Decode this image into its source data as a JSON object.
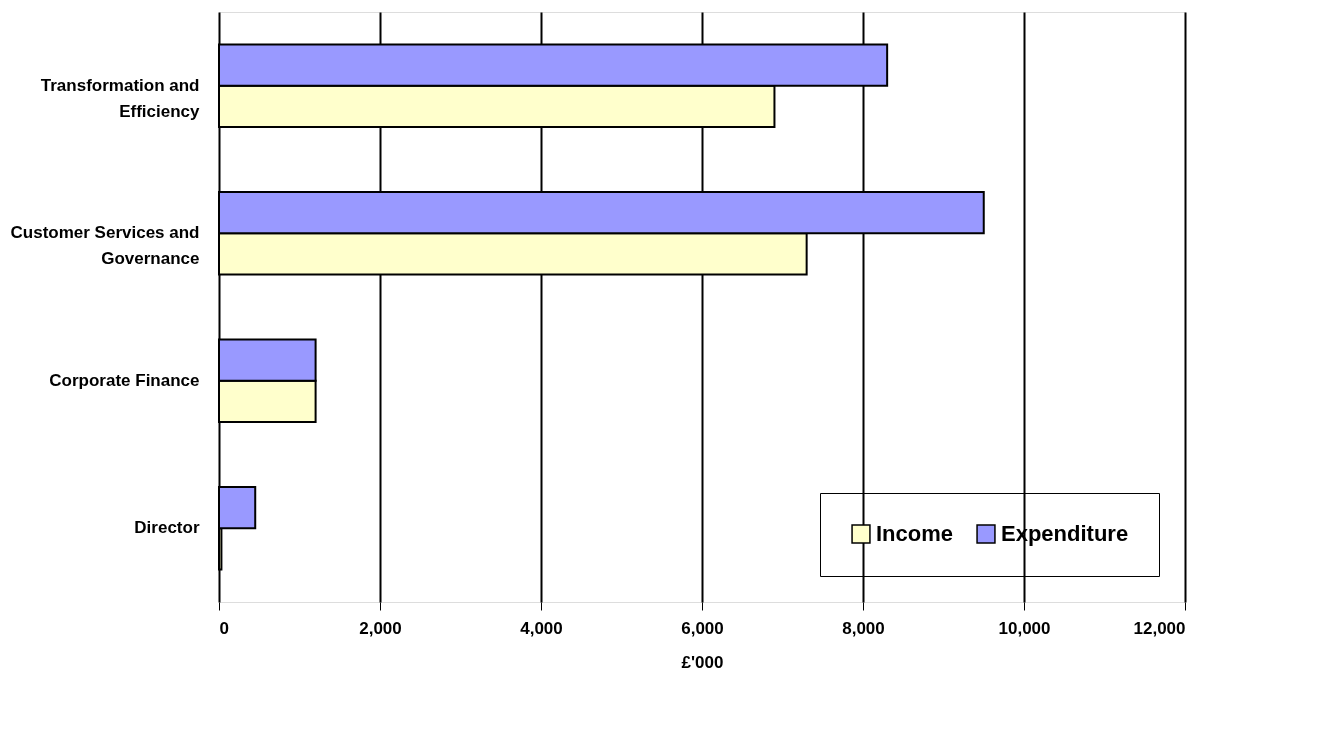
{
  "chart_data": {
    "type": "bar",
    "orientation": "horizontal",
    "xlabel": "£'000",
    "categories": [
      "Transformation and Efficiency",
      "Customer Services and Governance",
      "Corporate Finance",
      "Director"
    ],
    "series": [
      {
        "name": "Income",
        "color": "#ffffcc",
        "values": [
          6900,
          7300,
          1200,
          30
        ]
      },
      {
        "name": "Expenditure",
        "color": "#9999ff",
        "values": [
          8300,
          9500,
          1200,
          450
        ]
      }
    ],
    "xlim": [
      0,
      12000
    ],
    "xticks": [
      {
        "value": 0,
        "label": "0"
      },
      {
        "value": 2000,
        "label": "2,000"
      },
      {
        "value": 4000,
        "label": "4,000"
      },
      {
        "value": 6000,
        "label": "6,000"
      },
      {
        "value": 8000,
        "label": "8,000"
      },
      {
        "value": 10000,
        "label": "10,000"
      },
      {
        "value": 12000,
        "label": "12,000"
      }
    ],
    "grid": "x",
    "legend": "bottom right"
  }
}
